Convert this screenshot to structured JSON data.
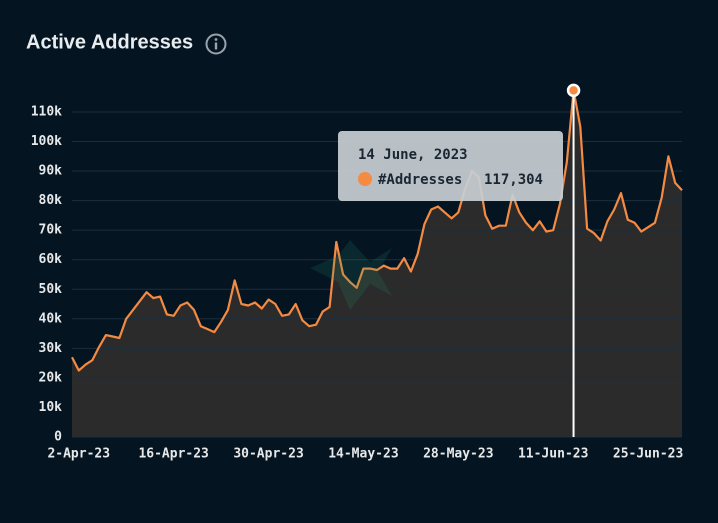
{
  "chart_data": {
    "type": "area",
    "title": "Active Addresses",
    "x": [
      null,
      "2-Apr-23",
      null,
      null,
      null,
      null,
      null,
      null,
      null,
      null,
      null,
      null,
      null,
      null,
      null,
      "16-Apr-23",
      null,
      null,
      null,
      null,
      null,
      null,
      null,
      null,
      null,
      null,
      null,
      null,
      null,
      "30-Apr-23",
      null,
      null,
      null,
      null,
      null,
      null,
      null,
      null,
      null,
      null,
      null,
      null,
      null,
      "14-May-23",
      null,
      null,
      null,
      null,
      null,
      null,
      null,
      null,
      null,
      null,
      null,
      null,
      null,
      "28-May-23",
      null,
      null,
      null,
      null,
      null,
      null,
      null,
      null,
      null,
      null,
      null,
      null,
      null,
      "11-Jun-23",
      null,
      null,
      null,
      null,
      null,
      null,
      null,
      null,
      null,
      null,
      null,
      null,
      null,
      "25-Jun-23",
      null,
      null,
      null,
      null,
      null
    ],
    "series": [
      {
        "name": "#Addresses",
        "color": "#f58a42",
        "fill": "#2b2b2b",
        "values": [
          27000,
          22500,
          24500,
          26000,
          30500,
          34500,
          34000,
          33500,
          40000,
          43000,
          46000,
          49000,
          47000,
          47500,
          41500,
          41000,
          44500,
          45500,
          43000,
          37500,
          36500,
          35500,
          39000,
          43000,
          53000,
          45000,
          44500,
          45500,
          43500,
          46500,
          45000,
          41000,
          41500,
          45000,
          39500,
          37500,
          38000,
          42500,
          44000,
          66000,
          55000,
          52500,
          50500,
          57000,
          57000,
          56500,
          58000,
          57000,
          57000,
          60500,
          56000,
          62000,
          72000,
          77000,
          78000,
          76000,
          74000,
          76000,
          84000,
          90000,
          88000,
          75000,
          70500,
          71500,
          71500,
          82000,
          76000,
          72500,
          70000,
          73000,
          69500,
          70000,
          79000,
          93000,
          117304,
          105000,
          70500,
          69000,
          66500,
          73000,
          77000,
          82500,
          73500,
          72500,
          69500,
          71000,
          72500,
          81000,
          95000,
          86000,
          83500
        ]
      }
    ],
    "ylim": [
      0,
      118000
    ],
    "yticks": [
      0,
      {
        "value": 10000,
        "label": "10k"
      },
      {
        "value": 20000,
        "label": "20k"
      },
      {
        "value": 30000,
        "label": "30k"
      },
      {
        "value": 40000,
        "label": "40k"
      },
      {
        "value": 50000,
        "label": "50k"
      },
      {
        "value": 60000,
        "label": "60k"
      },
      {
        "value": 70000,
        "label": "70k"
      },
      {
        "value": 80000,
        "label": "80k"
      },
      {
        "value": 90000,
        "label": "90k"
      },
      {
        "value": 100000,
        "label": "100k"
      },
      {
        "value": 110000,
        "label": "110k"
      }
    ],
    "grid": true,
    "tooltip": {
      "title": "14 June, 2023",
      "value_label": "117,304"
    }
  }
}
